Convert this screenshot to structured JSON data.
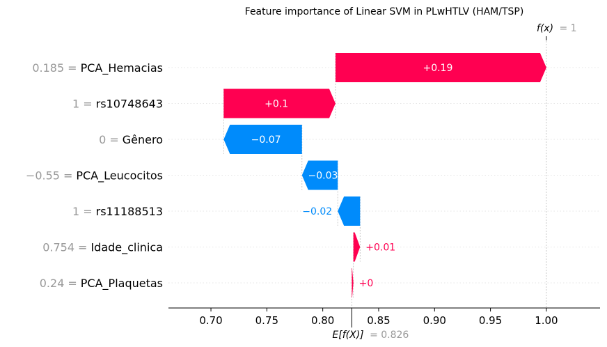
{
  "chart_data": {
    "type": "waterfall",
    "title": "Feature importance of Linear SVM in PLwHTLV (HAM/TSP)",
    "base_value": 0.826,
    "base_label_lhs": "E[f(X)]",
    "base_label_rhs": "= 0.826",
    "output_value": 1,
    "output_label_lhs": "f(x)",
    "output_label_rhs": "= 1",
    "xlim": [
      0.662,
      1.048
    ],
    "xticks": [
      0.7,
      0.75,
      0.8,
      0.85,
      0.9,
      0.95,
      1.0
    ],
    "xtick_labels": [
      "0.70",
      "0.75",
      "0.80",
      "0.85",
      "0.90",
      "0.95",
      "1.00"
    ],
    "positive_color": "#ff0051",
    "negative_color": "#008bfb",
    "features": [
      {
        "value": "0.185",
        "name": "PCA_Hemacias",
        "start": 0.8114,
        "end": 1.0,
        "label": "+0.19"
      },
      {
        "value": "1",
        "name": "rs10748643",
        "start": 0.7114,
        "end": 0.8114,
        "label": "+0.1"
      },
      {
        "value": "0",
        "name": "Gênero",
        "start": 0.7814,
        "end": 0.7114,
        "label": "−0.07"
      },
      {
        "value": "−0.55",
        "name": "PCA_Leucocitos",
        "start": 0.8134,
        "end": 0.7814,
        "label": "−0.03"
      },
      {
        "value": "1",
        "name": "rs11188513",
        "start": 0.8334,
        "end": 0.8134,
        "label": "−0.02"
      },
      {
        "value": "0.754",
        "name": "Idade_clinica",
        "start": 0.8274,
        "end": 0.8334,
        "label": "+0.01"
      },
      {
        "value": "0.24",
        "name": "PCA_Plaquetas",
        "start": 0.826,
        "end": 0.8274,
        "label": "+0"
      }
    ]
  }
}
